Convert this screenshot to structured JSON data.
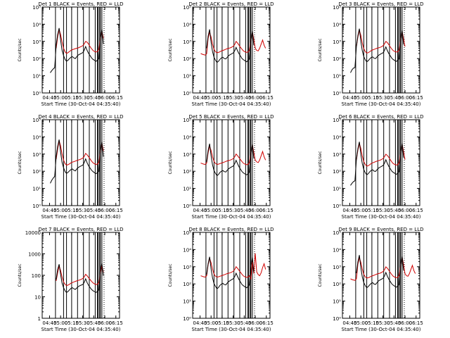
{
  "figure": {
    "panels": [
      {
        "title": "Det 1 BLACK = Events, RED = LLD",
        "ylabel": "Counts/sec",
        "xlabel": "Start Time (30-Oct-04 04:35:40)",
        "yticks": [
          "10⁰",
          "10¹",
          "10²",
          "10³",
          "10⁴",
          "10⁵"
        ]
      },
      {
        "title": "Det 2 BLACK = Events, RED = LLD",
        "ylabel": "Counts/sec",
        "xlabel": "Start Time (30-Oct-04 04:35:40)",
        "yticks": [
          "10⁰",
          "10¹",
          "10²",
          "10³",
          "10⁴",
          "10⁵"
        ]
      },
      {
        "title": "Det 3 BLACK = Events, RED = LLD",
        "ylabel": "Counts/sec",
        "xlabel": "Start Time (30-Oct-04 04:35:40)",
        "yticks": [
          "10⁰",
          "10¹",
          "10²",
          "10³",
          "10⁴",
          "10⁵"
        ]
      },
      {
        "title": "Det 4 BLACK = Events, RED = LLD",
        "ylabel": "Counts/sec",
        "xlabel": "Start Time (30-Oct-04 04:35:40)",
        "yticks": [
          "10⁰",
          "10¹",
          "10²",
          "10³",
          "10⁴",
          "10⁵"
        ]
      },
      {
        "title": "Det 5 BLACK = Events, RED = LLD",
        "ylabel": "Counts/sec",
        "xlabel": "Start Time (30-Oct-04 04:35:40)",
        "yticks": [
          "10⁰",
          "10¹",
          "10²",
          "10³",
          "10⁴",
          "10⁵"
        ]
      },
      {
        "title": "Det 6 BLACK = Events, RED = LLD",
        "ylabel": "Counts/sec",
        "xlabel": "Start Time (30-Oct-04 04:35:40)",
        "yticks": [
          "10⁰",
          "10¹",
          "10²",
          "10³",
          "10⁴",
          "10⁵"
        ]
      },
      {
        "title": "Det 7 BLACK = Events, RED = LLD",
        "ylabel": "Counts/sec",
        "xlabel": "Start Time (30-Oct-04 04:35:40)",
        "yticks": [
          "1",
          "10",
          "100",
          "1000",
          "10000"
        ]
      },
      {
        "title": "Det 8 BLACK = Events, RED = LLD",
        "ylabel": "Counts/sec",
        "xlabel": "Start Time (30-Oct-04 04:35:40)",
        "yticks": [
          "10⁰",
          "10¹",
          "10²",
          "10³",
          "10⁴",
          "10⁵"
        ]
      },
      {
        "title": "Det 9 BLACK = Events, RED = LLD",
        "ylabel": "Counts/sec",
        "xlabel": "Start Time (30-Oct-04 04:35:40)",
        "yticks": [
          "10⁰",
          "10¹",
          "10²",
          "10³",
          "10⁴",
          "10⁵"
        ]
      }
    ]
  },
  "chart_data": {
    "type": "line",
    "grid": false,
    "y_scale": "log",
    "y_range": [
      1,
      100000
    ],
    "x_range": [
      "04:35:40",
      "06:20"
    ],
    "x_tick_labels": [
      "04:45",
      "05:00",
      "05:15",
      "05:30",
      "05:45",
      "06:00",
      "06:15"
    ],
    "series_colors": {
      "events": "#000000",
      "lld": "#d00000"
    },
    "marker_lines_solid": [
      "04:53",
      "05:04",
      "05:08",
      "05:15",
      "05:23",
      "05:31",
      "05:39",
      "05:47",
      "05:50",
      "05:51",
      "05:53",
      "05:54",
      "05:56"
    ],
    "marker_lines_dotted": [
      "05:59"
    ],
    "x_time": [
      "04:46",
      "04:48",
      "04:50",
      "04:52",
      "04:54",
      "04:56",
      "04:58",
      "05:00",
      "05:02",
      "05:04",
      "05:06",
      "05:08",
      "05:10",
      "05:12",
      "05:14",
      "05:16",
      "05:18",
      "05:20",
      "05:22",
      "05:24",
      "05:26",
      "05:28",
      "05:30",
      "05:32",
      "05:34",
      "05:36",
      "05:38",
      "05:40",
      "05:42",
      "05:44",
      "05:46",
      "05:48",
      "05:50",
      "05:52",
      "05:54",
      "05:56",
      "05:58",
      "06:00",
      "06:02",
      "06:04",
      "06:06",
      "06:08",
      "06:10",
      "06:12",
      "06:14"
    ],
    "panels": [
      {
        "title": "Det 1 BLACK = Events, RED = LLD",
        "lld": [
          null,
          null,
          null,
          null,
          400,
          1800,
          5000,
          2500,
          900,
          400,
          250,
          200,
          220,
          260,
          300,
          330,
          350,
          380,
          400,
          420,
          460,
          500,
          560,
          700,
          1000,
          900,
          700,
          500,
          380,
          300,
          260,
          240,
          260,
          350,
          1500,
          4000,
          1500,
          null,
          null,
          null,
          null,
          null,
          null,
          null,
          null
        ],
        "events": [
          15,
          20,
          25,
          30,
          600,
          2500,
          6000,
          1200,
          300,
          150,
          90,
          70,
          80,
          100,
          120,
          130,
          110,
          100,
          130,
          160,
          180,
          200,
          220,
          300,
          500,
          300,
          200,
          150,
          110,
          90,
          80,
          70,
          80,
          100,
          1500,
          5000,
          700,
          null,
          null,
          null,
          null,
          null,
          null,
          null,
          null
        ]
      },
      {
        "title": "Det 2 BLACK = Events, RED = LLD",
        "lld": [
          200,
          180,
          170,
          160,
          190,
          1500,
          3500,
          1800,
          700,
          350,
          250,
          220,
          230,
          250,
          280,
          300,
          320,
          350,
          380,
          400,
          420,
          460,
          520,
          650,
          1000,
          800,
          600,
          450,
          350,
          280,
          250,
          230,
          240,
          300,
          1200,
          3500,
          1300,
          400,
          300,
          280,
          400,
          700,
          1200,
          600,
          400
        ],
        "events": [
          null,
          null,
          null,
          null,
          400,
          2000,
          5000,
          900,
          250,
          120,
          80,
          60,
          70,
          90,
          110,
          120,
          100,
          95,
          120,
          150,
          170,
          190,
          210,
          280,
          450,
          280,
          190,
          140,
          100,
          85,
          75,
          65,
          75,
          95,
          1200,
          4000,
          600,
          null,
          null,
          null,
          null,
          null,
          null,
          null,
          null
        ]
      },
      {
        "title": "Det 3 BLACK = Events, RED = LLD",
        "lld": [
          null,
          null,
          null,
          null,
          500,
          1800,
          4500,
          2200,
          800,
          380,
          260,
          210,
          220,
          250,
          290,
          320,
          340,
          370,
          400,
          420,
          450,
          490,
          550,
          700,
          1000,
          850,
          650,
          480,
          360,
          290,
          260,
          240,
          250,
          320,
          1300,
          3800,
          1400,
          500,
          null,
          null,
          null,
          null,
          null,
          null,
          null
        ],
        "events": [
          15,
          22,
          28,
          30,
          500,
          2200,
          5500,
          1000,
          280,
          130,
          85,
          65,
          75,
          95,
          115,
          125,
          105,
          100,
          125,
          155,
          175,
          195,
          215,
          290,
          480,
          290,
          195,
          145,
          105,
          88,
          78,
          68,
          78,
          98,
          1300,
          4500,
          650,
          null,
          null,
          null,
          null,
          null,
          null,
          null,
          null
        ]
      },
      {
        "title": "Det 4 BLACK = Events, RED = LLD",
        "lld": [
          null,
          null,
          null,
          null,
          500,
          2000,
          6000,
          3000,
          1000,
          450,
          280,
          230,
          240,
          270,
          310,
          340,
          360,
          390,
          420,
          450,
          480,
          520,
          580,
          720,
          1100,
          900,
          700,
          520,
          390,
          310,
          270,
          250,
          260,
          330,
          1400,
          4500,
          1500,
          null,
          null,
          null,
          null,
          null,
          null,
          null,
          null
        ],
        "events": [
          20,
          30,
          40,
          50,
          700,
          2800,
          7000,
          1300,
          320,
          160,
          95,
          75,
          85,
          105,
          125,
          135,
          115,
          105,
          135,
          165,
          185,
          205,
          225,
          310,
          520,
          310,
          205,
          155,
          115,
          95,
          82,
          72,
          82,
          102,
          1500,
          5200,
          700,
          null,
          null,
          null,
          null,
          null,
          null,
          null,
          null
        ]
      },
      {
        "title": "Det 5 BLACK = Events, RED = LLD",
        "lld": [
          300,
          280,
          260,
          250,
          300,
          1200,
          3000,
          1600,
          700,
          380,
          280,
          250,
          260,
          280,
          300,
          320,
          340,
          370,
          400,
          420,
          450,
          480,
          540,
          680,
          1000,
          800,
          620,
          470,
          360,
          290,
          260,
          240,
          250,
          320,
          1200,
          3500,
          1200,
          450,
          350,
          320,
          450,
          800,
          1400,
          700,
          450
        ],
        "events": [
          null,
          null,
          null,
          null,
          350,
          1600,
          4000,
          800,
          230,
          110,
          75,
          55,
          65,
          85,
          100,
          110,
          95,
          90,
          115,
          140,
          160,
          180,
          200,
          270,
          430,
          270,
          180,
          130,
          95,
          80,
          70,
          62,
          70,
          90,
          1100,
          3800,
          550,
          null,
          null,
          null,
          null,
          null,
          null,
          null,
          null
        ]
      },
      {
        "title": "Det 6 BLACK = Events, RED = LLD",
        "lld": [
          null,
          null,
          null,
          null,
          450,
          1700,
          4200,
          2100,
          750,
          360,
          250,
          200,
          210,
          240,
          280,
          310,
          330,
          360,
          390,
          410,
          440,
          480,
          540,
          690,
          980,
          830,
          640,
          470,
          350,
          280,
          250,
          230,
          240,
          310,
          1250,
          3700,
          1350,
          480,
          null,
          null,
          null,
          null,
          null,
          null,
          null
        ],
        "events": [
          15,
          20,
          25,
          28,
          480,
          2100,
          5200,
          950,
          270,
          125,
          82,
          62,
          72,
          92,
          112,
          122,
          102,
          97,
          122,
          152,
          172,
          192,
          212,
          285,
          470,
          285,
          190,
          140,
          102,
          86,
          76,
          66,
          76,
          96,
          1250,
          4300,
          620,
          null,
          null,
          null,
          null,
          null,
          null,
          null,
          null
        ]
      },
      {
        "title": "Det 7 BLACK = Events, RED = LLD",
        "lld": [
          null,
          null,
          null,
          null,
          150,
          450,
          1100,
          600,
          250,
          130,
          95,
          80,
          85,
          95,
          110,
          120,
          130,
          140,
          150,
          160,
          170,
          185,
          205,
          250,
          360,
          300,
          230,
          180,
          140,
          115,
          100,
          92,
          95,
          120,
          450,
          1200,
          480,
          null,
          null,
          null,
          null,
          null,
          null,
          null,
          null
        ],
        "events": [
          null,
          null,
          null,
          null,
          180,
          700,
          1400,
          350,
          110,
          60,
          40,
          32,
          36,
          45,
          55,
          60,
          52,
          48,
          58,
          70,
          78,
          85,
          92,
          120,
          200,
          120,
          82,
          62,
          48,
          40,
          36,
          32,
          36,
          45,
          600,
          1600,
          300,
          null,
          null,
          null,
          null,
          null,
          null,
          null,
          null
        ]
      },
      {
        "title": "Det 8 BLACK = Events, RED = LLD",
        "lld": [
          300,
          280,
          260,
          250,
          300,
          1300,
          3200,
          1700,
          720,
          380,
          280,
          250,
          260,
          280,
          300,
          320,
          340,
          370,
          400,
          420,
          450,
          480,
          540,
          680,
          1000,
          800,
          620,
          470,
          360,
          290,
          260,
          240,
          250,
          300,
          200,
          2000,
          400,
          6000,
          500,
          350,
          300,
          450,
          900,
          1500,
          700
        ],
        "events": [
          null,
          null,
          null,
          null,
          350,
          1500,
          3800,
          750,
          220,
          105,
          72,
          52,
          62,
          82,
          98,
          108,
          92,
          88,
          112,
          138,
          158,
          178,
          198,
          265,
          420,
          265,
          178,
          128,
          92,
          78,
          68,
          60,
          68,
          88,
          1000,
          3500,
          500,
          null,
          null,
          null,
          null,
          null,
          null,
          null,
          null
        ]
      },
      {
        "title": "Det 9 BLACK = Events, RED = LLD",
        "lld": [
          200,
          180,
          170,
          160,
          200,
          1400,
          3400,
          1800,
          720,
          360,
          260,
          220,
          230,
          250,
          280,
          300,
          320,
          350,
          380,
          400,
          420,
          460,
          520,
          650,
          980,
          820,
          620,
          460,
          350,
          280,
          250,
          230,
          240,
          310,
          1200,
          3600,
          1300,
          400,
          300,
          280,
          400,
          700,
          1200,
          600,
          400
        ],
        "events": [
          null,
          null,
          null,
          null,
          420,
          1900,
          4800,
          880,
          250,
          118,
          80,
          60,
          70,
          88,
          108,
          118,
          98,
          94,
          118,
          148,
          168,
          188,
          208,
          280,
          460,
          280,
          188,
          138,
          100,
          84,
          74,
          64,
          74,
          94,
          1200,
          4100,
          600,
          null,
          null,
          null,
          null,
          null,
          null,
          null,
          null
        ]
      }
    ]
  }
}
